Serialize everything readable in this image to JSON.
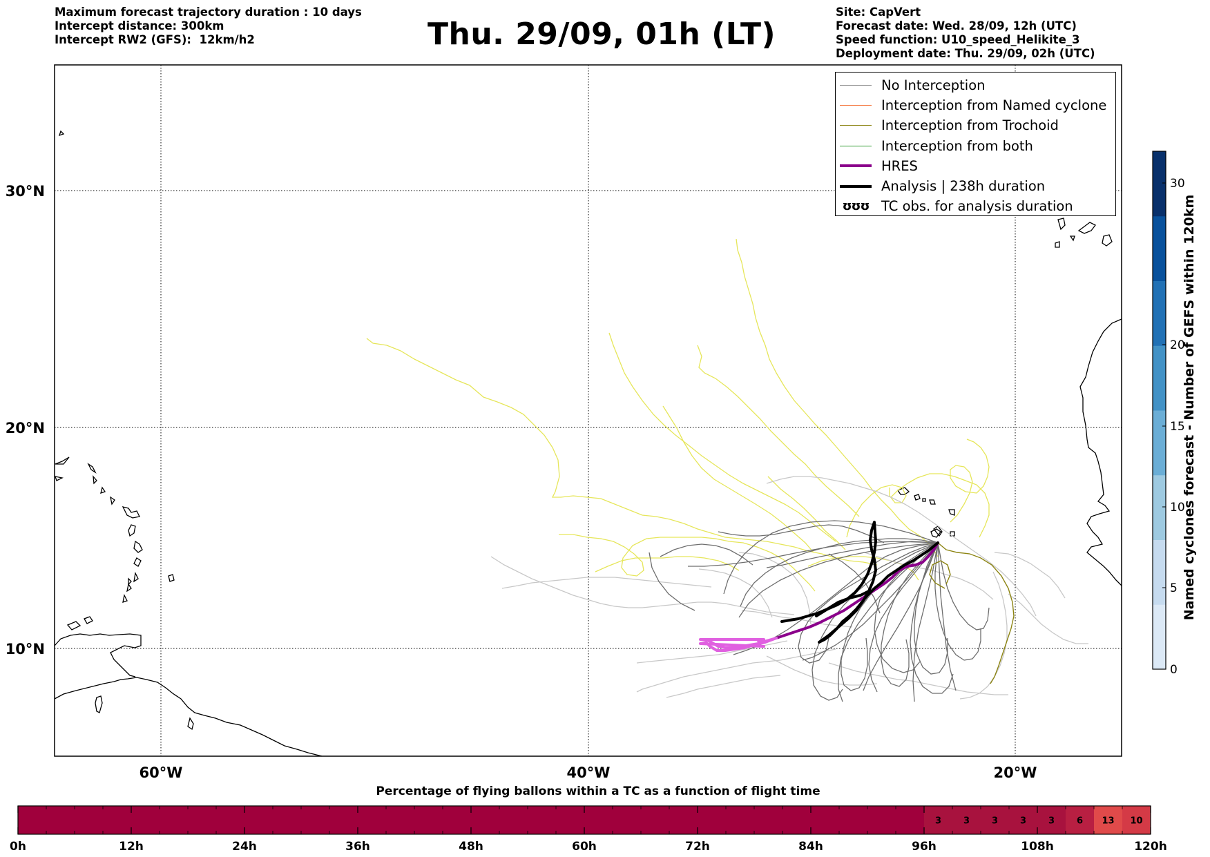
{
  "header": {
    "left_lines": [
      "Maximum forecast trajectory duration : 10 days",
      "Intercept distance: 300km",
      "Intercept RW2 (GFS):  12km/h2"
    ],
    "title": "Thu. 29/09, 01h (LT)",
    "right_lines": [
      "Site: CapVert",
      "Forecast date: Wed. 28/09, 12h (UTC)",
      "Speed function: U10_speed_Helikite_3",
      "Deployment date: Thu. 29/09, 02h (UTC)"
    ]
  },
  "map": {
    "lon_ticks": [
      "60°W",
      "40°W",
      "20°W"
    ],
    "lat_ticks": [
      "30°N",
      "20°N",
      "10°N"
    ]
  },
  "legend": {
    "items": [
      {
        "label": "No Interception",
        "color": "#8c8c8c",
        "width": 1.2
      },
      {
        "label": "Interception from Named cyclone",
        "color": "#f4743a",
        "width": 1.5
      },
      {
        "label": "Interception from Trochoid",
        "color": "#8c8412",
        "width": 1.5
      },
      {
        "label": "Interception from both",
        "color": "#2e9a2e",
        "width": 1.5
      },
      {
        "label": "HRES",
        "color": "#8b008b",
        "width": 4
      },
      {
        "label": "Analysis | 238h duration",
        "color": "#000000",
        "width": 4
      }
    ],
    "tc_symbol_label": "TC obs. for analysis duration",
    "tc_symbol": "ʊʊʊ"
  },
  "colorbar": {
    "label": "Named cyclones forecast - Number of GEFS within 120km",
    "tick_labels": [
      "0",
      "5",
      "10",
      "15",
      "20",
      "30"
    ],
    "colors": [
      "#dce9f6",
      "#c6dbef",
      "#9ecae1",
      "#6baed6",
      "#4292c6",
      "#2171b5",
      "#08519c",
      "#08306b"
    ]
  },
  "timebar": {
    "title": "Percentage of flying ballons within a TC as a function of flight time",
    "tick_labels": [
      "0h",
      "12h",
      "24h",
      "36h",
      "48h",
      "60h",
      "72h",
      "84h",
      "96h",
      "108h",
      "120h"
    ],
    "base_color": "#a0003c",
    "values": [
      0,
      0,
      0,
      0,
      0,
      0,
      0,
      0,
      0,
      0,
      0,
      0,
      0,
      0,
      0,
      0,
      0,
      0,
      0,
      0,
      0,
      0,
      0,
      0,
      0,
      0,
      0,
      0,
      0,
      0,
      0,
      0,
      3,
      3,
      3,
      3,
      3,
      6,
      13,
      10
    ],
    "value_colors": {
      "3": "#a8123e",
      "6": "#b81f42",
      "13": "#e04a4a",
      "10": "#d43a46"
    }
  },
  "trajectory_colors": {
    "yellow": "#e6e65a",
    "light_gray": "#c8c8c8",
    "dark_gray": "#6e6e6e",
    "olive": "#8c8412",
    "hres": "#8b008b",
    "hres_tail": "#e060e0",
    "analysis": "#000000"
  }
}
